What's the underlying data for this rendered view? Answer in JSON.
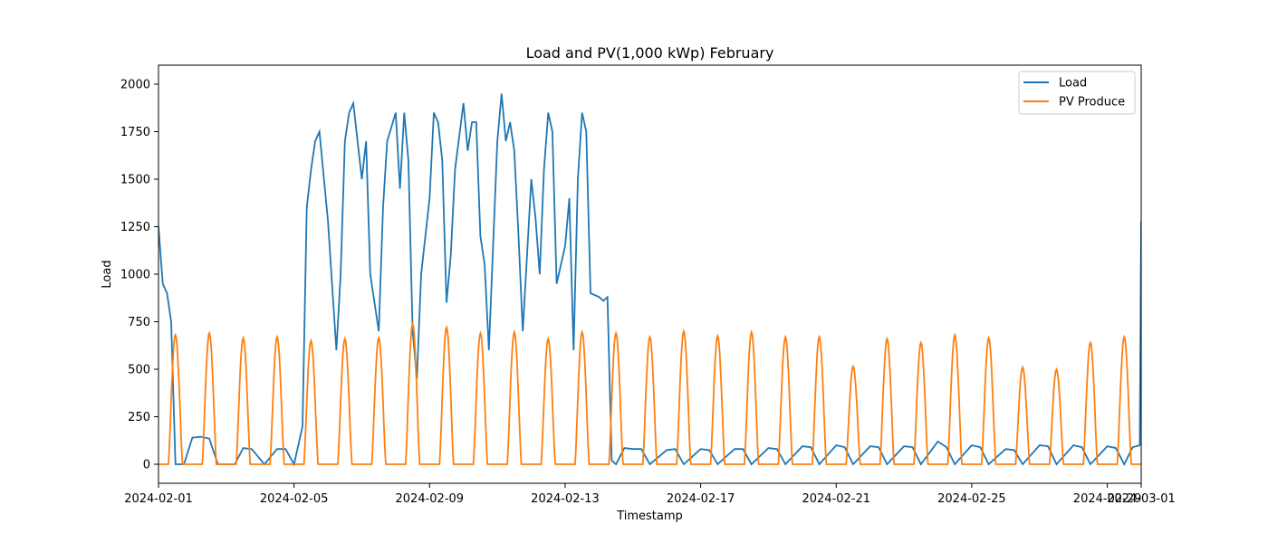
{
  "chart_data": {
    "type": "line",
    "title": "Load and PV(1,000 kWp) February",
    "xlabel": "Timestamp",
    "ylabel": "Load",
    "xlim": [
      "2024-02-01",
      "2024-03-01"
    ],
    "ylim": [
      -100,
      2100
    ],
    "x_ticks": [
      "2024-02-01",
      "2024-02-05",
      "2024-02-09",
      "2024-02-13",
      "2024-02-17",
      "2024-02-21",
      "2024-02-25",
      "2024-02-29",
      "2024-03-01"
    ],
    "y_ticks": [
      0,
      250,
      500,
      750,
      1000,
      1250,
      1500,
      1750,
      2000
    ],
    "legend_position": "top-right",
    "grid": false,
    "series": [
      {
        "name": "Load",
        "color": "#1f77b4",
        "points": [
          [
            "2024-02-01T00:00",
            1250
          ],
          [
            "2024-02-01T03:00",
            950
          ],
          [
            "2024-02-01T06:00",
            900
          ],
          [
            "2024-02-01T09:00",
            750
          ],
          [
            "2024-02-01T12:00",
            0
          ],
          [
            "2024-02-01T18:00",
            0
          ],
          [
            "2024-02-02T00:00",
            140
          ],
          [
            "2024-02-02T06:00",
            145
          ],
          [
            "2024-02-02T12:00",
            135
          ],
          [
            "2024-02-02T18:00",
            0
          ],
          [
            "2024-02-03T06:00",
            0
          ],
          [
            "2024-02-03T12:00",
            85
          ],
          [
            "2024-02-03T18:00",
            80
          ],
          [
            "2024-02-04T03:00",
            0
          ],
          [
            "2024-02-04T12:00",
            80
          ],
          [
            "2024-02-04T18:00",
            80
          ],
          [
            "2024-02-05T00:00",
            0
          ],
          [
            "2024-02-05T06:00",
            200
          ],
          [
            "2024-02-05T09:00",
            1350
          ],
          [
            "2024-02-05T12:00",
            1550
          ],
          [
            "2024-02-05T15:00",
            1700
          ],
          [
            "2024-02-05T18:00",
            1750
          ],
          [
            "2024-02-06T00:00",
            1280
          ],
          [
            "2024-02-06T06:00",
            600
          ],
          [
            "2024-02-06T09:00",
            1000
          ],
          [
            "2024-02-06T12:00",
            1700
          ],
          [
            "2024-02-06T15:00",
            1850
          ],
          [
            "2024-02-06T18:00",
            1900
          ],
          [
            "2024-02-07T00:00",
            1500
          ],
          [
            "2024-02-07T03:00",
            1700
          ],
          [
            "2024-02-07T06:00",
            1000
          ],
          [
            "2024-02-07T09:00",
            850
          ],
          [
            "2024-02-07T12:00",
            700
          ],
          [
            "2024-02-07T15:00",
            1350
          ],
          [
            "2024-02-07T18:00",
            1700
          ],
          [
            "2024-02-08T00:00",
            1850
          ],
          [
            "2024-02-08T03:00",
            1450
          ],
          [
            "2024-02-08T06:00",
            1850
          ],
          [
            "2024-02-08T09:00",
            1600
          ],
          [
            "2024-02-08T12:00",
            700
          ],
          [
            "2024-02-08T15:00",
            450
          ],
          [
            "2024-02-08T18:00",
            1000
          ],
          [
            "2024-02-09T00:00",
            1400
          ],
          [
            "2024-02-09T03:00",
            1850
          ],
          [
            "2024-02-09T06:00",
            1800
          ],
          [
            "2024-02-09T09:00",
            1600
          ],
          [
            "2024-02-09T12:00",
            850
          ],
          [
            "2024-02-09T15:00",
            1100
          ],
          [
            "2024-02-09T18:00",
            1550
          ],
          [
            "2024-02-10T00:00",
            1900
          ],
          [
            "2024-02-10T03:00",
            1650
          ],
          [
            "2024-02-10T06:00",
            1800
          ],
          [
            "2024-02-10T09:00",
            1800
          ],
          [
            "2024-02-10T12:00",
            1200
          ],
          [
            "2024-02-10T15:00",
            1050
          ],
          [
            "2024-02-10T18:00",
            600
          ],
          [
            "2024-02-11T00:00",
            1700
          ],
          [
            "2024-02-11T03:00",
            1950
          ],
          [
            "2024-02-11T06:00",
            1700
          ],
          [
            "2024-02-11T09:00",
            1800
          ],
          [
            "2024-02-11T12:00",
            1650
          ],
          [
            "2024-02-11T15:00",
            1200
          ],
          [
            "2024-02-11T18:00",
            700
          ],
          [
            "2024-02-12T00:00",
            1500
          ],
          [
            "2024-02-12T03:00",
            1300
          ],
          [
            "2024-02-12T06:00",
            1000
          ],
          [
            "2024-02-12T09:00",
            1550
          ],
          [
            "2024-02-12T12:00",
            1850
          ],
          [
            "2024-02-12T15:00",
            1750
          ],
          [
            "2024-02-12T18:00",
            950
          ],
          [
            "2024-02-13T00:00",
            1150
          ],
          [
            "2024-02-13T03:00",
            1400
          ],
          [
            "2024-02-13T06:00",
            600
          ],
          [
            "2024-02-13T09:00",
            1500
          ],
          [
            "2024-02-13T12:00",
            1850
          ],
          [
            "2024-02-13T15:00",
            1750
          ],
          [
            "2024-02-13T18:00",
            900
          ],
          [
            "2024-02-14T00:00",
            880
          ],
          [
            "2024-02-14T03:00",
            860
          ],
          [
            "2024-02-14T06:00",
            880
          ],
          [
            "2024-02-14T09:00",
            20
          ],
          [
            "2024-02-14T12:00",
            0
          ],
          [
            "2024-02-14T18:00",
            85
          ],
          [
            "2024-02-15T00:00",
            80
          ],
          [
            "2024-02-15T06:00",
            80
          ],
          [
            "2024-02-15T12:00",
            0
          ],
          [
            "2024-02-16T00:00",
            75
          ],
          [
            "2024-02-16T06:00",
            80
          ],
          [
            "2024-02-16T12:00",
            0
          ],
          [
            "2024-02-17T00:00",
            80
          ],
          [
            "2024-02-17T06:00",
            75
          ],
          [
            "2024-02-17T12:00",
            0
          ],
          [
            "2024-02-18T00:00",
            80
          ],
          [
            "2024-02-18T06:00",
            80
          ],
          [
            "2024-02-18T12:00",
            0
          ],
          [
            "2024-02-19T00:00",
            85
          ],
          [
            "2024-02-19T06:00",
            80
          ],
          [
            "2024-02-19T12:00",
            0
          ],
          [
            "2024-02-20T00:00",
            95
          ],
          [
            "2024-02-20T06:00",
            90
          ],
          [
            "2024-02-20T12:00",
            0
          ],
          [
            "2024-02-21T00:00",
            100
          ],
          [
            "2024-02-21T06:00",
            90
          ],
          [
            "2024-02-21T12:00",
            0
          ],
          [
            "2024-02-22T00:00",
            95
          ],
          [
            "2024-02-22T06:00",
            90
          ],
          [
            "2024-02-22T12:00",
            0
          ],
          [
            "2024-02-23T00:00",
            95
          ],
          [
            "2024-02-23T06:00",
            90
          ],
          [
            "2024-02-23T12:00",
            0
          ],
          [
            "2024-02-24T00:00",
            120
          ],
          [
            "2024-02-24T06:00",
            90
          ],
          [
            "2024-02-24T12:00",
            0
          ],
          [
            "2024-02-25T00:00",
            100
          ],
          [
            "2024-02-25T06:00",
            90
          ],
          [
            "2024-02-25T12:00",
            0
          ],
          [
            "2024-02-26T00:00",
            80
          ],
          [
            "2024-02-26T06:00",
            75
          ],
          [
            "2024-02-26T12:00",
            0
          ],
          [
            "2024-02-27T00:00",
            100
          ],
          [
            "2024-02-27T06:00",
            95
          ],
          [
            "2024-02-27T12:00",
            0
          ],
          [
            "2024-02-28T00:00",
            100
          ],
          [
            "2024-02-28T06:00",
            90
          ],
          [
            "2024-02-28T12:00",
            0
          ],
          [
            "2024-02-29T00:00",
            95
          ],
          [
            "2024-02-29T06:00",
            85
          ],
          [
            "2024-02-29T12:00",
            0
          ],
          [
            "2024-02-29T18:00",
            90
          ],
          [
            "2024-02-29T23:00",
            100
          ],
          [
            "2024-03-01T00:00",
            1280
          ]
        ]
      },
      {
        "name": "PV Produce",
        "color": "#ff7f0e",
        "daily_peaks": [
          [
            "2024-02-01",
            680
          ],
          [
            "2024-02-02",
            690
          ],
          [
            "2024-02-03",
            665
          ],
          [
            "2024-02-04",
            670
          ],
          [
            "2024-02-05",
            650
          ],
          [
            "2024-02-06",
            660
          ],
          [
            "2024-02-07",
            665
          ],
          [
            "2024-02-08",
            740
          ],
          [
            "2024-02-09",
            720
          ],
          [
            "2024-02-10",
            690
          ],
          [
            "2024-02-11",
            695
          ],
          [
            "2024-02-12",
            660
          ],
          [
            "2024-02-13",
            695
          ],
          [
            "2024-02-14",
            690
          ],
          [
            "2024-02-15",
            670
          ],
          [
            "2024-02-16",
            700
          ],
          [
            "2024-02-17",
            675
          ],
          [
            "2024-02-18",
            695
          ],
          [
            "2024-02-19",
            670
          ],
          [
            "2024-02-20",
            670
          ],
          [
            "2024-02-21",
            515
          ],
          [
            "2024-02-22",
            660
          ],
          [
            "2024-02-23",
            640
          ],
          [
            "2024-02-24",
            680
          ],
          [
            "2024-02-25",
            665
          ],
          [
            "2024-02-26",
            510
          ],
          [
            "2024-02-27",
            500
          ],
          [
            "2024-02-28",
            640
          ],
          [
            "2024-02-29",
            670
          ]
        ],
        "daylight_hours": [
          "07:00",
          "17:00"
        ]
      }
    ]
  }
}
